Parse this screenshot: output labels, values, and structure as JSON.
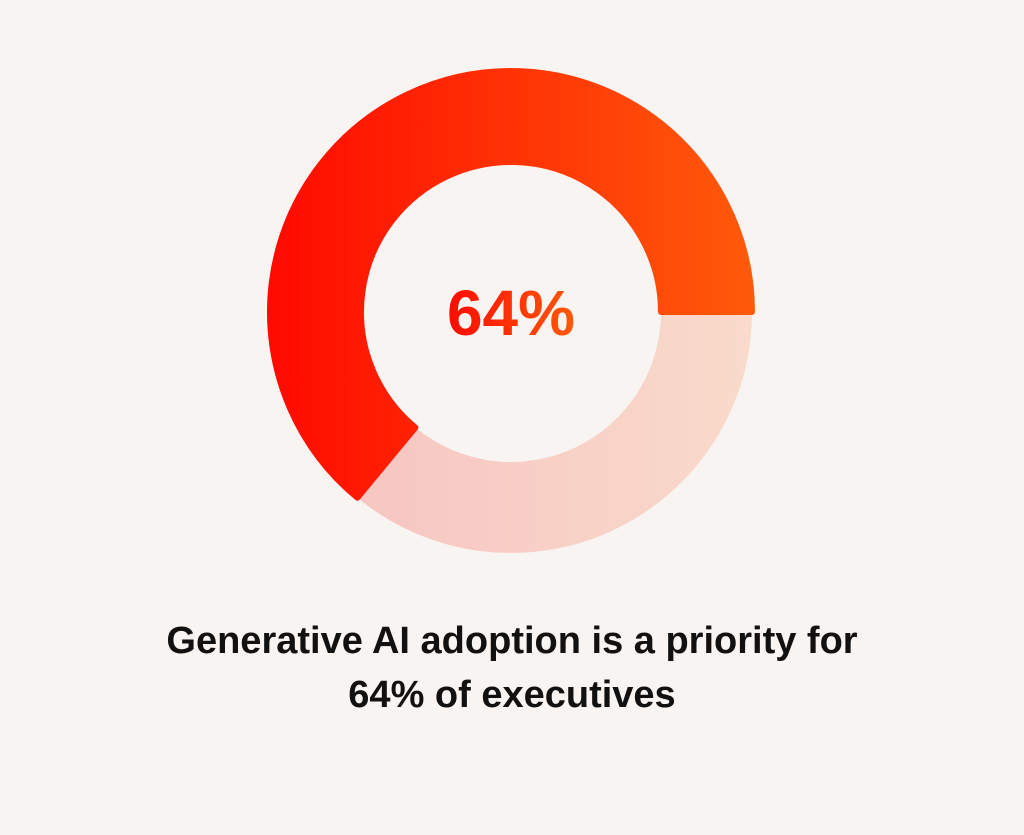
{
  "chart_data": {
    "type": "donut",
    "values": [
      64,
      36
    ],
    "colors": [
      [
        "#ff0a00",
        "#ff5a0a"
      ],
      [
        "#f7c6c2",
        "#f9dacb"
      ]
    ],
    "center_label": "64%",
    "title": [
      "Generative AI adoption is a priority for",
      "64% of executives"
    ]
  }
}
